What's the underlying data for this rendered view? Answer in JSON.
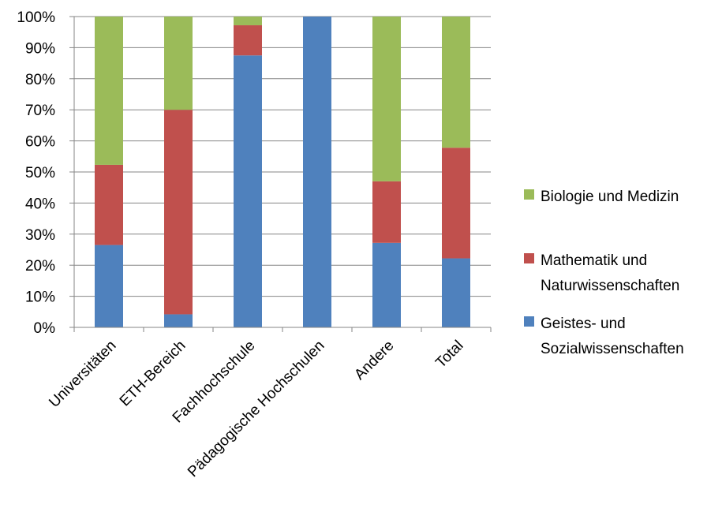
{
  "chart_data": {
    "type": "bar",
    "stacked": true,
    "percent_stacked": true,
    "categories": [
      "Universitäten",
      "ETH-Bereich",
      "Fachhochschule",
      "Pädagogische Hochschulen",
      "Andere",
      "Total"
    ],
    "series": [
      {
        "name": "Geistes- und Sozialwissenschaften",
        "legend_lines": [
          "Geistes- und",
          "Sozialwissenschaften"
        ],
        "color": "#4F81BD",
        "values": [
          26.5,
          4.2,
          87.5,
          100,
          27.2,
          22.2
        ]
      },
      {
        "name": "Mathematik und Naturwissenschaften",
        "legend_lines": [
          "Mathematik und",
          "Naturwissenschaften"
        ],
        "color": "#C0504D",
        "values": [
          25.8,
          65.8,
          9.7,
          0,
          19.8,
          35.6
        ]
      },
      {
        "name": "Biologie und Medizin",
        "legend_lines": [
          "Biologie und Medizin"
        ],
        "color": "#9BBB59",
        "values": [
          47.7,
          30.0,
          2.8,
          0,
          53.0,
          42.2
        ]
      }
    ],
    "y_ticks": [
      "0%",
      "10%",
      "20%",
      "30%",
      "40%",
      "50%",
      "60%",
      "70%",
      "80%",
      "90%",
      "100%"
    ],
    "ylim": [
      0,
      100
    ],
    "grid": true,
    "legend_position": "right",
    "title": "",
    "xlabel": "",
    "ylabel": ""
  }
}
